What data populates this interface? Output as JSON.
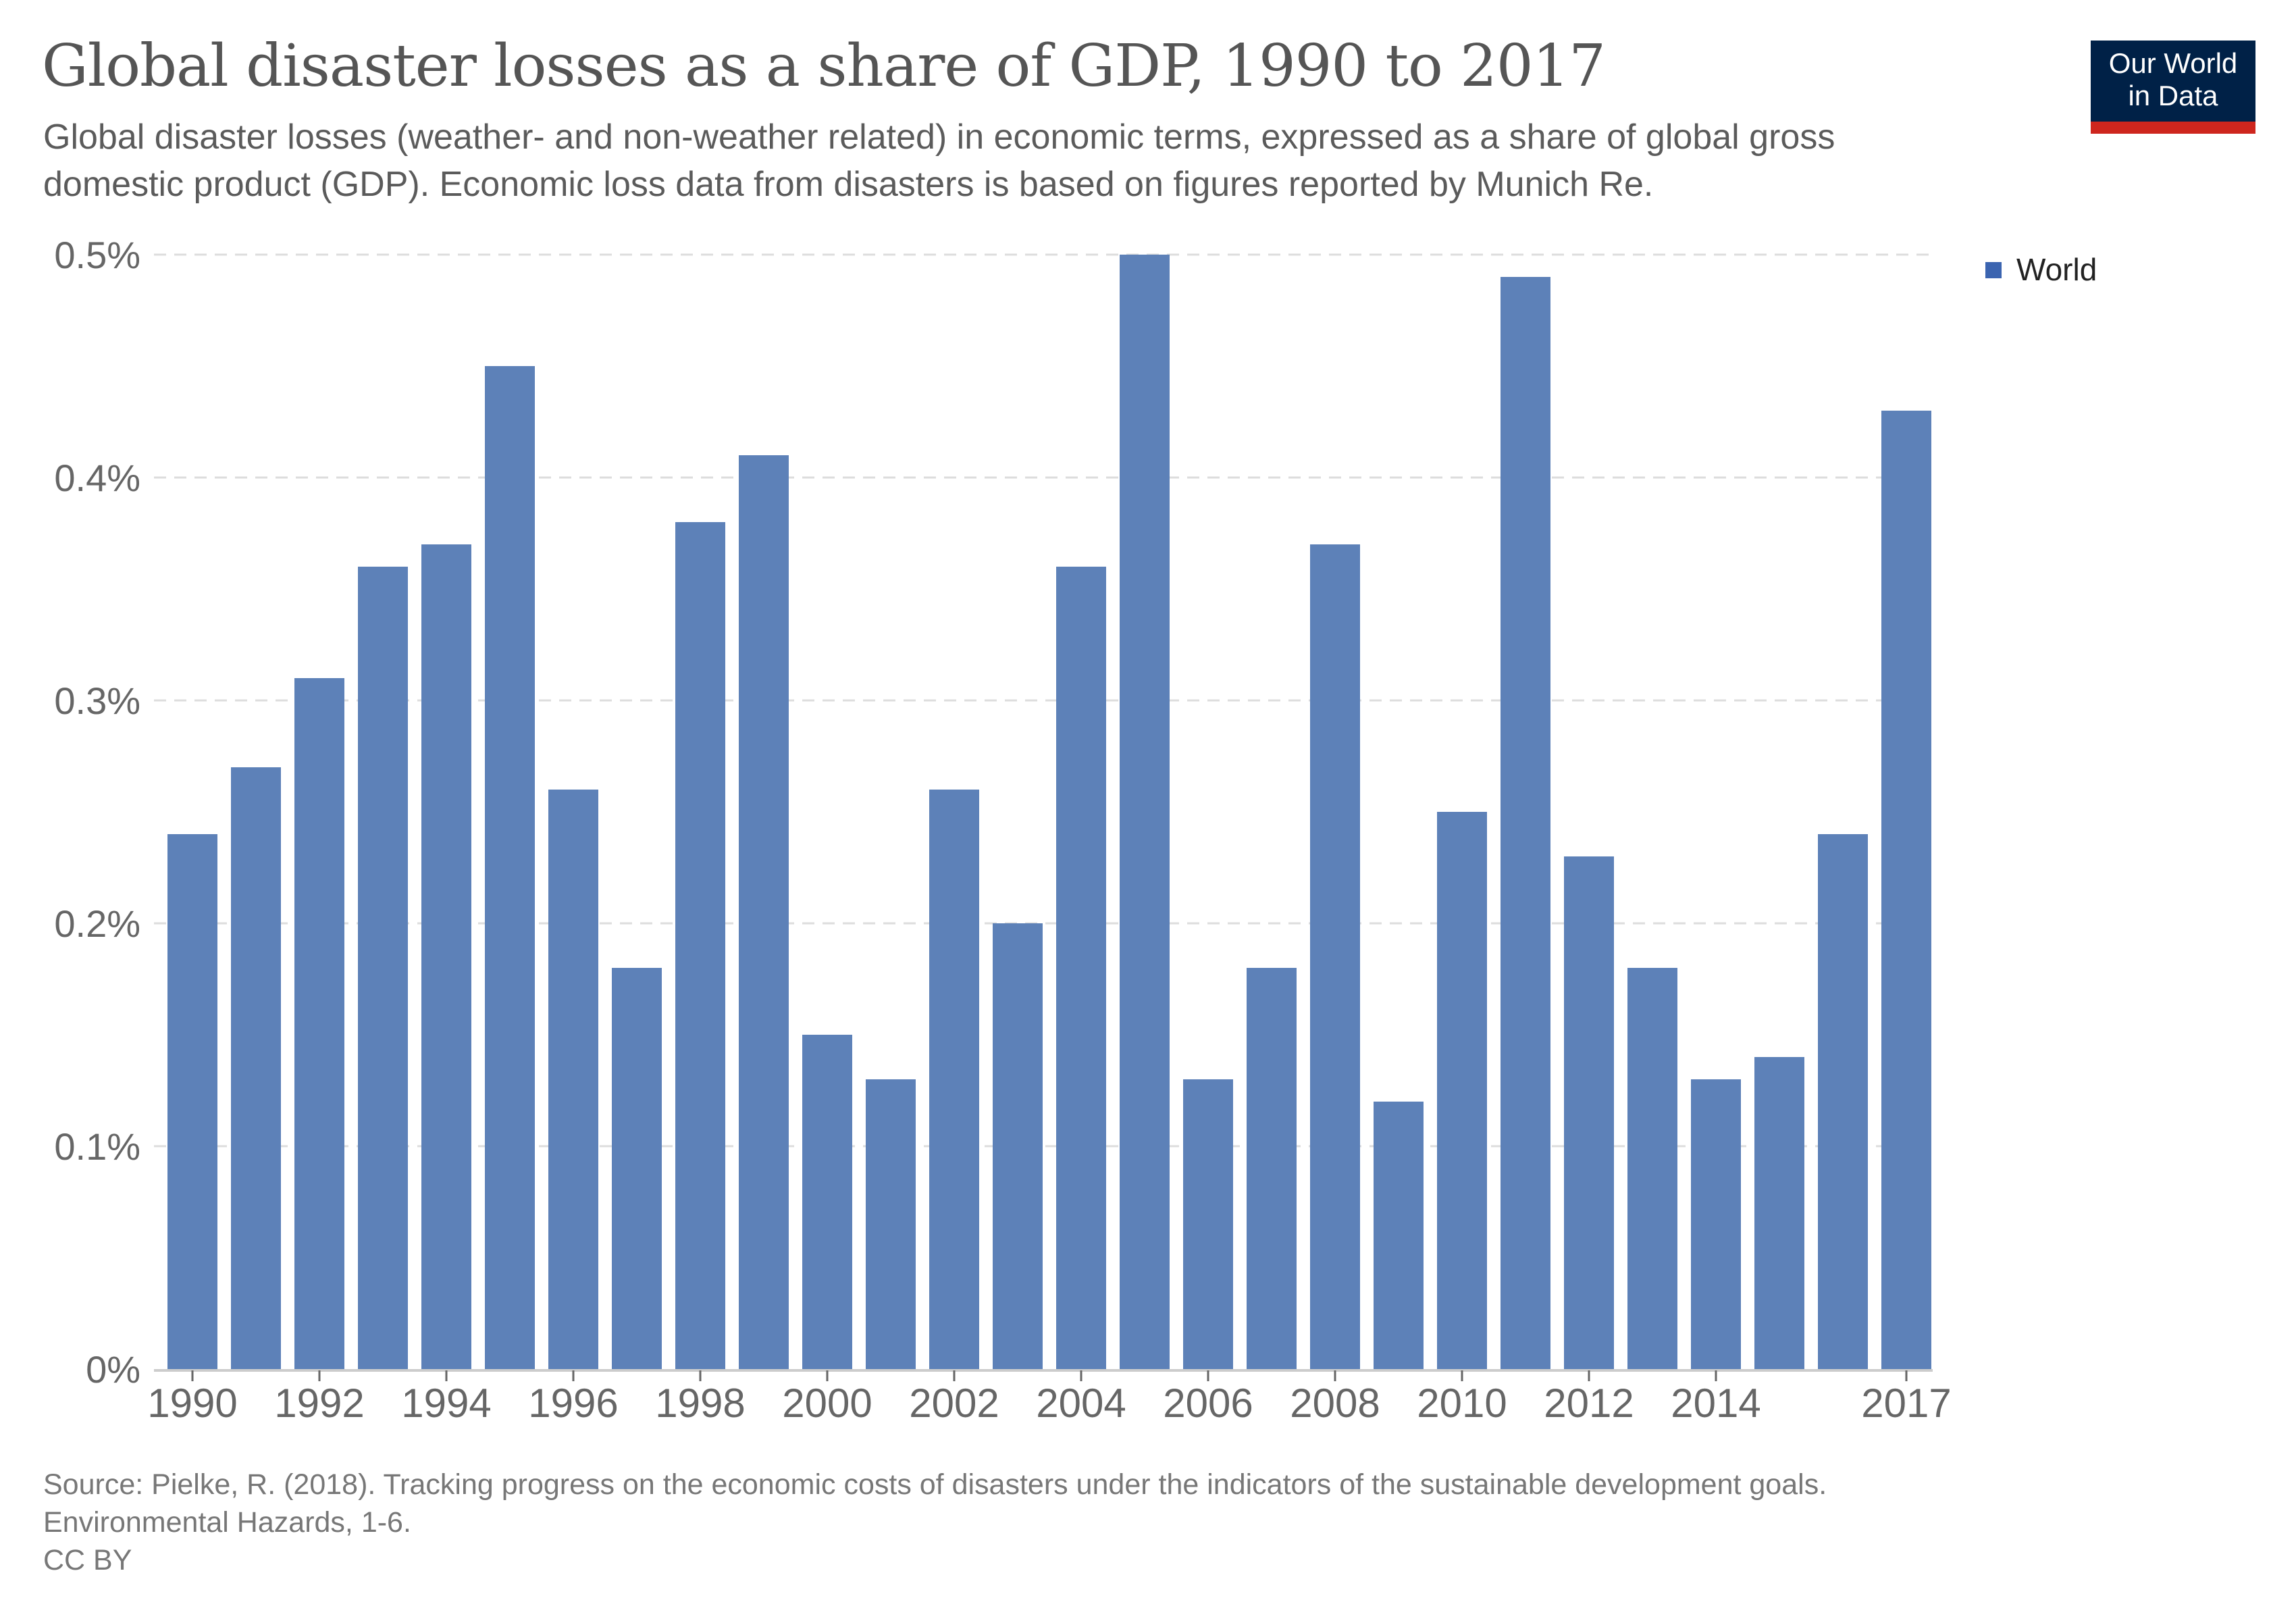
{
  "header": {
    "title": "Global disaster losses as a share of GDP, 1990 to 2017",
    "subtitle_line1": "Global disaster losses (weather- and non-weather related) in economic terms, expressed as a share of global gross",
    "subtitle_line2": "domestic product (GDP). Economic loss data from disasters is based on figures reported by Munich Re.",
    "logo_line1": "Our World",
    "logo_line2": "in Data"
  },
  "legend": {
    "label": "World",
    "color": "#3b64b0"
  },
  "footer": {
    "source_line1": "Source: Pielke, R. (2018). Tracking progress on the economic costs of disasters under the indicators of the sustainable development goals.",
    "source_line2": "Environmental Hazards, 1-6.",
    "license": "CC BY"
  },
  "colors": {
    "bar": "#5d81b8",
    "logo_bg": "#002147",
    "logo_accent": "#ce261e"
  },
  "chart_data": {
    "type": "bar",
    "title": "Global disaster losses as a share of GDP, 1990 to 2017",
    "xlabel": "",
    "ylabel": "",
    "ylim": [
      0,
      0.5
    ],
    "y_ticks": [
      0,
      0.1,
      0.2,
      0.3,
      0.4,
      0.5
    ],
    "y_tick_labels": [
      "0%",
      "0.1%",
      "0.2%",
      "0.3%",
      "0.4%",
      "0.5%"
    ],
    "grid": true,
    "legend_position": "top-right",
    "categories": [
      "1990",
      "1991",
      "1992",
      "1993",
      "1994",
      "1995",
      "1996",
      "1997",
      "1998",
      "1999",
      "2000",
      "2001",
      "2002",
      "2003",
      "2004",
      "2005",
      "2006",
      "2007",
      "2008",
      "2009",
      "2010",
      "2011",
      "2012",
      "2013",
      "2014",
      "2015",
      "2016",
      "2017"
    ],
    "x_tick_labels": [
      "1990",
      "1992",
      "1994",
      "1996",
      "1998",
      "2000",
      "2002",
      "2004",
      "2006",
      "2008",
      "2010",
      "2012",
      "2014",
      "2017"
    ],
    "series": [
      {
        "name": "World",
        "unit": "% of GDP",
        "values": [
          0.24,
          0.27,
          0.31,
          0.36,
          0.37,
          0.45,
          0.26,
          0.18,
          0.38,
          0.41,
          0.15,
          0.13,
          0.26,
          0.2,
          0.36,
          0.5,
          0.13,
          0.18,
          0.37,
          0.12,
          0.25,
          0.49,
          0.23,
          0.18,
          0.13,
          0.14,
          0.24,
          0.43
        ]
      }
    ]
  }
}
